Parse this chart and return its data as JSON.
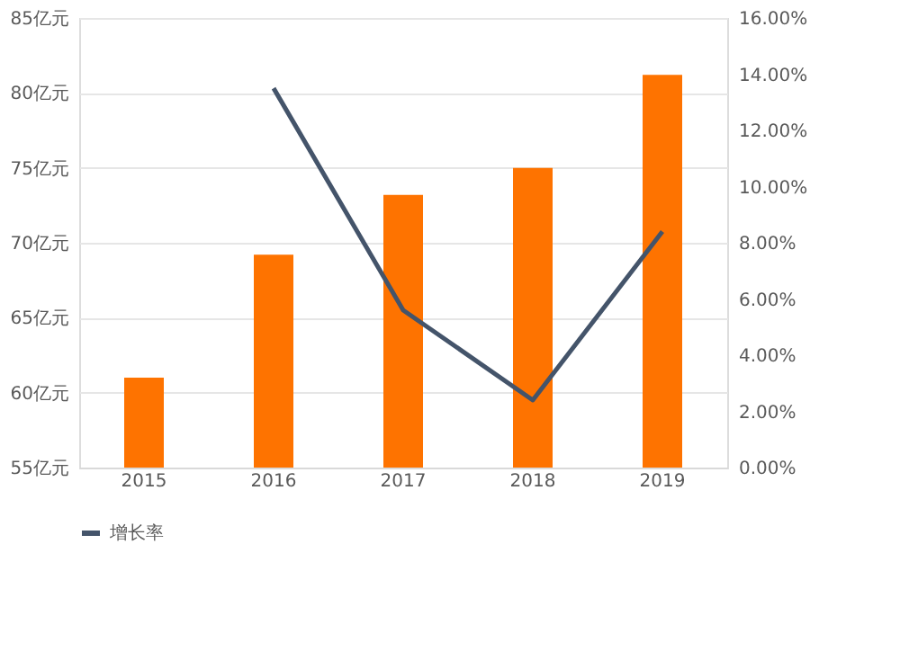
{
  "chart_data": {
    "type": "bar",
    "categories": [
      "2015",
      "2016",
      "2017",
      "2018",
      "2019"
    ],
    "series": [
      {
        "color": "#fe7300",
        "values": [
          61.0,
          69.2,
          73.2,
          75.0,
          81.2
        ]
      },
      {
        "type": "line",
        "name": "增长率",
        "color": "#44546a",
        "axis": "y2",
        "values": [
          null,
          13.5,
          5.6,
          2.4,
          8.4
        ]
      }
    ],
    "ylim": [
      55,
      85
    ],
    "yticks": [
      {
        "value": 55,
        "label": "55亿元"
      },
      {
        "value": 60,
        "label": "60亿元"
      },
      {
        "value": 65,
        "label": "65亿元"
      },
      {
        "value": 70,
        "label": "70亿元"
      },
      {
        "value": 75,
        "label": "75亿元"
      },
      {
        "value": 80,
        "label": "80亿元"
      },
      {
        "value": 85,
        "label": "85亿元"
      }
    ],
    "y2lim": [
      0,
      16
    ],
    "y2ticks": [
      {
        "value": 0,
        "label": "0.00%"
      },
      {
        "value": 2,
        "label": "2.00%"
      },
      {
        "value": 4,
        "label": "4.00%"
      },
      {
        "value": 6,
        "label": "6.00%"
      },
      {
        "value": 8,
        "label": "8.00%"
      },
      {
        "value": 10,
        "label": "10.00%"
      },
      {
        "value": 12,
        "label": "12.00%"
      },
      {
        "value": 14,
        "label": "14.00%"
      },
      {
        "value": 16,
        "label": "16.00%"
      }
    ],
    "grid": "y",
    "legend": "bottom",
    "marker": "none"
  }
}
